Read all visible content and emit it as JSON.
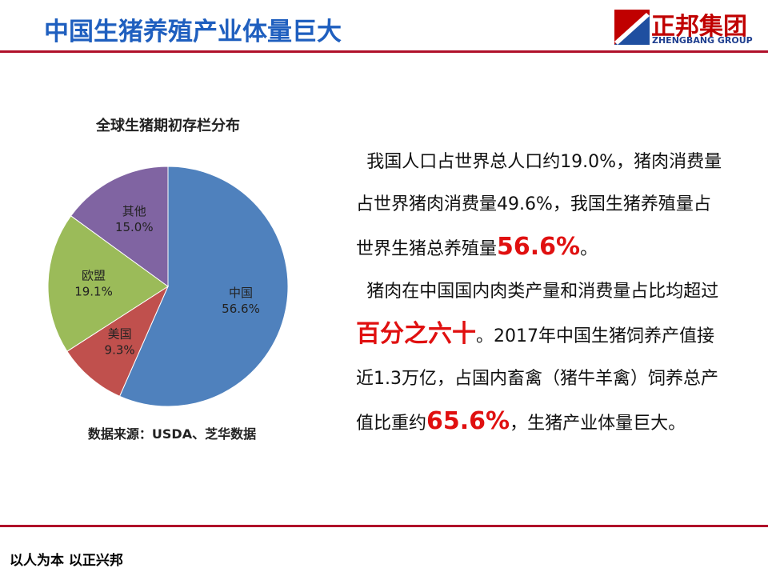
{
  "header": {
    "title": "中国生猪养殖产业体量巨大",
    "logo_name": "正邦集团",
    "logo_en": "ZHENGBANG GROUP"
  },
  "chart_data": {
    "type": "pie",
    "title": "全球生猪期初存栏分布",
    "categories": [
      "中国",
      "美国",
      "欧盟",
      "其他"
    ],
    "values": [
      56.6,
      9.3,
      19.1,
      15.0
    ],
    "value_labels": [
      "56.6%",
      "9.3%",
      "19.1%",
      "15.0%"
    ],
    "colors": [
      "#4f81bd",
      "#c0504d",
      "#9bbb59",
      "#8064a2"
    ],
    "source": "数据来源：USDA、芝华数据"
  },
  "body": {
    "paragraphs": [
      [
        {
          "text": "我国人口占世界总人口约19.0%，猪肉消费量占世界猪肉消费量49.6%，我国生猪养殖量占世界生猪总养殖量",
          "emphasis": false
        },
        {
          "text": "56.6%",
          "emphasis": true
        },
        {
          "text": "。",
          "emphasis": false
        }
      ],
      [
        {
          "text": "猪肉在中国国内肉类产量和消费量占比均超过",
          "emphasis": false
        },
        {
          "text": "百分之六十",
          "emphasis": true
        },
        {
          "text": "。2017年中国生猪饲养产值接近1.3万亿，占国内畜禽（猪牛羊禽）饲养总产值比重约",
          "emphasis": false
        },
        {
          "text": "65.6%",
          "emphasis": true
        },
        {
          "text": "，生猪产业体量巨大。",
          "emphasis": false
        }
      ]
    ]
  },
  "footer": {
    "motto": "以人为本 以正兴邦"
  }
}
